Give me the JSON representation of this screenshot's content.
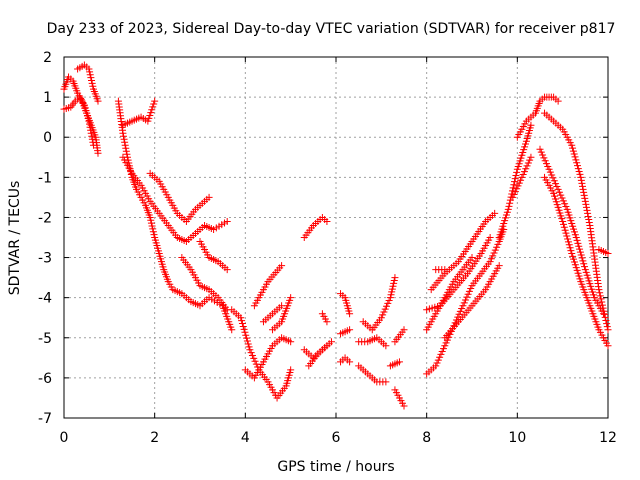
{
  "chart_data": {
    "type": "scatter",
    "title": "Day 233 of 2023, Sidereal Day-to-day VTEC variation (SDTVAR) for receiver p817",
    "xlabel": "GPS time / hours",
    "ylabel": "SDTVAR / TECUs",
    "xlim": [
      0,
      12
    ],
    "ylim": [
      -7,
      2
    ],
    "xticks": [
      0,
      2,
      4,
      6,
      8,
      10,
      12
    ],
    "yticks": [
      -7,
      -6,
      -5,
      -4,
      -3,
      -2,
      -1,
      0,
      1,
      2
    ],
    "grid": true,
    "marker": "+",
    "color": "#ff0000",
    "series": [
      {
        "name": "s1",
        "points": [
          [
            0,
            1.2
          ],
          [
            0.1,
            1.5
          ],
          [
            0.2,
            1.4
          ],
          [
            0.3,
            1.1
          ],
          [
            0.4,
            0.9
          ],
          [
            0.5,
            0.6
          ],
          [
            0.6,
            0.3
          ],
          [
            0.7,
            0.0
          ],
          [
            0.75,
            -0.4
          ]
        ]
      },
      {
        "name": "s2",
        "points": [
          [
            0,
            0.7
          ],
          [
            0.15,
            0.75
          ],
          [
            0.25,
            0.9
          ],
          [
            0.35,
            1.0
          ],
          [
            0.45,
            0.8
          ],
          [
            0.55,
            0.4
          ],
          [
            0.65,
            -0.2
          ]
        ]
      },
      {
        "name": "s3",
        "points": [
          [
            0.3,
            1.7
          ],
          [
            0.45,
            1.8
          ],
          [
            0.55,
            1.7
          ],
          [
            0.65,
            1.2
          ],
          [
            0.75,
            0.9
          ]
        ]
      },
      {
        "name": "s4",
        "points": [
          [
            1.2,
            0.9
          ],
          [
            1.3,
            0.1
          ],
          [
            1.4,
            -0.5
          ],
          [
            1.5,
            -1.0
          ],
          [
            1.6,
            -1.3
          ],
          [
            1.7,
            -1.5
          ],
          [
            1.8,
            -1.7
          ],
          [
            1.9,
            -2.0
          ],
          [
            2.0,
            -2.5
          ],
          [
            2.1,
            -2.9
          ],
          [
            2.2,
            -3.3
          ],
          [
            2.3,
            -3.6
          ],
          [
            2.4,
            -3.8
          ],
          [
            2.6,
            -3.9
          ],
          [
            2.8,
            -4.1
          ],
          [
            3.0,
            -4.2
          ],
          [
            3.2,
            -4.0
          ],
          [
            3.5,
            -4.2
          ],
          [
            3.7,
            -4.8
          ]
        ]
      },
      {
        "name": "s5",
        "points": [
          [
            1.3,
            -0.5
          ],
          [
            1.5,
            -0.9
          ],
          [
            1.7,
            -1.2
          ],
          [
            1.9,
            -1.6
          ],
          [
            2.1,
            -1.9
          ],
          [
            2.3,
            -2.2
          ],
          [
            2.5,
            -2.5
          ],
          [
            2.7,
            -2.6
          ],
          [
            2.9,
            -2.4
          ],
          [
            3.1,
            -2.2
          ],
          [
            3.3,
            -2.3
          ],
          [
            3.6,
            -2.1
          ]
        ]
      },
      {
        "name": "s6",
        "points": [
          [
            1.9,
            -0.9
          ],
          [
            2.1,
            -1.1
          ],
          [
            2.3,
            -1.5
          ],
          [
            2.5,
            -1.9
          ],
          [
            2.7,
            -2.1
          ],
          [
            2.9,
            -1.8
          ],
          [
            3.1,
            -1.6
          ],
          [
            3.2,
            -1.5
          ]
        ]
      },
      {
        "name": "s7",
        "points": [
          [
            1.3,
            0.3
          ],
          [
            1.5,
            0.4
          ],
          [
            1.7,
            0.5
          ],
          [
            1.85,
            0.4
          ],
          [
            2.0,
            0.9
          ]
        ]
      },
      {
        "name": "s8",
        "points": [
          [
            2.6,
            -3.0
          ],
          [
            2.8,
            -3.3
          ],
          [
            3.0,
            -3.7
          ],
          [
            3.2,
            -3.8
          ],
          [
            3.4,
            -4.0
          ],
          [
            3.6,
            -4.3
          ]
        ]
      },
      {
        "name": "s9",
        "points": [
          [
            3.0,
            -2.6
          ],
          [
            3.2,
            -3.0
          ],
          [
            3.4,
            -3.1
          ],
          [
            3.6,
            -3.3
          ]
        ]
      },
      {
        "name": "s10",
        "points": [
          [
            3.7,
            -4.3
          ],
          [
            3.9,
            -4.5
          ],
          [
            4.1,
            -5.3
          ],
          [
            4.3,
            -5.8
          ],
          [
            4.5,
            -6.1
          ],
          [
            4.7,
            -6.5
          ],
          [
            4.9,
            -6.2
          ],
          [
            5.0,
            -5.8
          ]
        ]
      },
      {
        "name": "s11",
        "points": [
          [
            4.0,
            -5.8
          ],
          [
            4.2,
            -6.0
          ],
          [
            4.4,
            -5.6
          ],
          [
            4.6,
            -5.2
          ],
          [
            4.8,
            -5.0
          ],
          [
            5.0,
            -5.1
          ]
        ]
      },
      {
        "name": "s12",
        "points": [
          [
            4.2,
            -4.2
          ],
          [
            4.5,
            -3.6
          ],
          [
            4.8,
            -3.2
          ]
        ]
      },
      {
        "name": "s13",
        "points": [
          [
            4.4,
            -4.6
          ],
          [
            4.6,
            -4.4
          ],
          [
            4.8,
            -4.2
          ]
        ]
      },
      {
        "name": "s14",
        "points": [
          [
            4.6,
            -4.8
          ],
          [
            4.8,
            -4.6
          ],
          [
            5.0,
            -4.0
          ]
        ]
      },
      {
        "name": "s15",
        "points": [
          [
            5.3,
            -2.5
          ],
          [
            5.5,
            -2.2
          ],
          [
            5.7,
            -2.0
          ],
          [
            5.8,
            -2.1
          ]
        ]
      },
      {
        "name": "s16",
        "points": [
          [
            5.3,
            -5.3
          ],
          [
            5.5,
            -5.5
          ],
          [
            5.7,
            -5.3
          ],
          [
            5.9,
            -5.1
          ]
        ]
      },
      {
        "name": "s17",
        "points": [
          [
            5.4,
            -5.7
          ],
          [
            5.6,
            -5.4
          ],
          [
            5.8,
            -5.2
          ]
        ]
      },
      {
        "name": "s18",
        "points": [
          [
            5.7,
            -4.4
          ],
          [
            5.8,
            -4.6
          ]
        ]
      },
      {
        "name": "s19",
        "points": [
          [
            6.1,
            -3.9
          ],
          [
            6.2,
            -4.0
          ],
          [
            6.3,
            -4.4
          ]
        ]
      },
      {
        "name": "s20",
        "points": [
          [
            6.1,
            -4.9
          ],
          [
            6.3,
            -4.8
          ]
        ]
      },
      {
        "name": "s21",
        "points": [
          [
            6.1,
            -5.6
          ],
          [
            6.2,
            -5.5
          ],
          [
            6.3,
            -5.6
          ]
        ]
      },
      {
        "name": "s22",
        "points": [
          [
            6.5,
            -5.1
          ],
          [
            6.7,
            -5.1
          ],
          [
            6.9,
            -5.0
          ],
          [
            7.1,
            -5.2
          ]
        ]
      },
      {
        "name": "s23",
        "points": [
          [
            6.5,
            -5.7
          ],
          [
            6.7,
            -5.9
          ],
          [
            6.9,
            -6.1
          ],
          [
            7.1,
            -6.1
          ]
        ]
      },
      {
        "name": "s24",
        "points": [
          [
            6.6,
            -4.6
          ],
          [
            6.8,
            -4.8
          ],
          [
            7.0,
            -4.5
          ],
          [
            7.2,
            -4.0
          ],
          [
            7.3,
            -3.5
          ]
        ]
      },
      {
        "name": "s25",
        "points": [
          [
            7.3,
            -5.1
          ],
          [
            7.5,
            -4.8
          ]
        ]
      },
      {
        "name": "s26",
        "points": [
          [
            7.2,
            -5.7
          ],
          [
            7.4,
            -5.6
          ]
        ]
      },
      {
        "name": "s27",
        "points": [
          [
            7.3,
            -6.3
          ],
          [
            7.5,
            -6.7
          ]
        ]
      },
      {
        "name": "s28",
        "points": [
          [
            8.0,
            -5.9
          ],
          [
            8.2,
            -5.7
          ],
          [
            8.4,
            -5.2
          ],
          [
            8.6,
            -4.7
          ],
          [
            8.8,
            -4.2
          ],
          [
            9.0,
            -3.7
          ],
          [
            9.2,
            -3.4
          ],
          [
            9.4,
            -3.1
          ],
          [
            9.6,
            -2.6
          ],
          [
            9.7,
            -2.3
          ]
        ]
      },
      {
        "name": "s29",
        "points": [
          [
            8.0,
            -4.8
          ],
          [
            8.2,
            -4.4
          ],
          [
            8.4,
            -4.0
          ],
          [
            8.6,
            -3.6
          ],
          [
            8.8,
            -3.3
          ],
          [
            9.0,
            -3.0
          ]
        ]
      },
      {
        "name": "s30",
        "points": [
          [
            8.0,
            -4.3
          ],
          [
            8.3,
            -4.2
          ],
          [
            8.6,
            -3.8
          ],
          [
            8.9,
            -3.4
          ],
          [
            9.2,
            -2.9
          ],
          [
            9.4,
            -2.5
          ]
        ]
      },
      {
        "name": "s31",
        "points": [
          [
            8.1,
            -3.8
          ],
          [
            8.4,
            -3.4
          ],
          [
            8.7,
            -3.1
          ],
          [
            9.0,
            -2.6
          ],
          [
            9.3,
            -2.1
          ],
          [
            9.5,
            -1.9
          ]
        ]
      },
      {
        "name": "s32",
        "points": [
          [
            8.4,
            -5.0
          ],
          [
            8.7,
            -4.6
          ],
          [
            9.0,
            -4.2
          ],
          [
            9.3,
            -3.8
          ],
          [
            9.6,
            -3.2
          ]
        ]
      },
      {
        "name": "s33",
        "points": [
          [
            8.2,
            -3.3
          ],
          [
            8.4,
            -3.3
          ]
        ]
      },
      {
        "name": "s34",
        "points": [
          [
            9.6,
            -2.5
          ],
          [
            9.8,
            -1.8
          ],
          [
            10.0,
            -0.8
          ],
          [
            10.2,
            -0.1
          ],
          [
            10.3,
            0.3
          ]
        ]
      },
      {
        "name": "s35",
        "points": [
          [
            9.9,
            -1.5
          ],
          [
            10.1,
            -1.0
          ],
          [
            10.3,
            -0.5
          ]
        ]
      },
      {
        "name": "s36",
        "points": [
          [
            10.0,
            0.0
          ],
          [
            10.2,
            0.4
          ],
          [
            10.4,
            0.6
          ],
          [
            10.5,
            0.9
          ],
          [
            10.6,
            1.0
          ],
          [
            10.7,
            1.0
          ],
          [
            10.8,
            1.0
          ],
          [
            10.9,
            0.9
          ]
        ]
      },
      {
        "name": "s37",
        "points": [
          [
            10.6,
            0.6
          ],
          [
            10.8,
            0.4
          ],
          [
            11.0,
            0.2
          ],
          [
            11.2,
            -0.2
          ],
          [
            11.4,
            -1.0
          ],
          [
            11.6,
            -2.2
          ],
          [
            11.8,
            -3.8
          ],
          [
            12.0,
            -4.8
          ]
        ]
      },
      {
        "name": "s38",
        "points": [
          [
            10.5,
            -0.3
          ],
          [
            10.7,
            -0.8
          ],
          [
            10.9,
            -1.3
          ],
          [
            11.1,
            -1.8
          ],
          [
            11.3,
            -2.5
          ],
          [
            11.5,
            -3.3
          ],
          [
            11.7,
            -4.0
          ],
          [
            11.9,
            -4.4
          ]
        ]
      },
      {
        "name": "s39",
        "points": [
          [
            10.6,
            -1.0
          ],
          [
            10.8,
            -1.4
          ],
          [
            11.0,
            -2.1
          ],
          [
            11.2,
            -2.9
          ],
          [
            11.4,
            -3.6
          ],
          [
            11.6,
            -4.2
          ],
          [
            11.8,
            -4.8
          ],
          [
            12.0,
            -5.2
          ]
        ]
      },
      {
        "name": "s40",
        "points": [
          [
            11.8,
            -2.8
          ],
          [
            12.0,
            -2.9
          ]
        ]
      }
    ]
  }
}
